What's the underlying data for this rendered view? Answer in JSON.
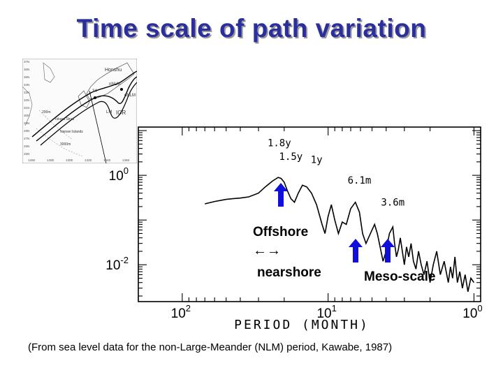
{
  "slide": {
    "title": "Time scale of path variation",
    "caption": "(From sea level data for the non-Large-Meander (NLM) period, Kawabe, 1987)"
  },
  "map": {
    "labels": [
      "Honshu",
      "nNLM",
      "oNLM",
      "LM",
      "IOR",
      "200m",
      "Tokara Strait",
      "Nansei Islands",
      "3000m",
      "34"
    ],
    "lat_labels": [
      "37N",
      "36N",
      "35N",
      "34N",
      "33N",
      "32N",
      "31N",
      "30N",
      "29N",
      "28N",
      "27N",
      "26N",
      "25N"
    ],
    "lon_labels": [
      "126E",
      "128E",
      "130E",
      "132E",
      "134E",
      "136E"
    ]
  },
  "annotations": {
    "offshore": "Offshore",
    "arrows": "←→",
    "nearshore": "nearshore",
    "mesoscale": "Meso-scale"
  },
  "colors": {
    "title": "#2b2f9e",
    "arrow": "#1010d8",
    "ink": "#000000"
  },
  "chart_data": {
    "type": "line",
    "xlabel": "PERIOD (MONTH)",
    "x_ticks": [
      {
        "base": "10",
        "exp": "2"
      },
      {
        "base": "10",
        "exp": "1"
      },
      {
        "base": "10",
        "exp": "0"
      }
    ],
    "y_ticks": [
      {
        "base": "10",
        "exp": "0"
      },
      {
        "base": "10",
        "exp": "-2"
      }
    ],
    "x_scale": "log-reversed",
    "y_scale": "log",
    "xlim": [
      200,
      0.9
    ],
    "ylim": [
      0.0015,
      12
    ],
    "peak_labels": [
      {
        "text": "1.8y",
        "x": 21.6,
        "y": 4.5
      },
      {
        "text": "1.5y",
        "x": 18,
        "y": 2.2
      },
      {
        "text": "1y",
        "x": 12,
        "y": 1.9
      },
      {
        "text": "6.1m",
        "x": 6.1,
        "y": 0.65
      },
      {
        "text": "3.6m",
        "x": 3.6,
        "y": 0.21
      }
    ],
    "series": [
      {
        "x": [
          70,
          60,
          50,
          45,
          40,
          35,
          30,
          27,
          24,
          22,
          21,
          20,
          19,
          18,
          17,
          16,
          15,
          14,
          13,
          12,
          11,
          10.5,
          10,
          9.5,
          9,
          8.5,
          8,
          7.5,
          7,
          6.5,
          6.1,
          5.8,
          5.5,
          5.2,
          5,
          4.8,
          4.6,
          4.4,
          4.2,
          4,
          3.8,
          3.6,
          3.5,
          3.4,
          3.3,
          3.2,
          3.1,
          3,
          2.9,
          2.8,
          2.7,
          2.6,
          2.5,
          2.4,
          2.3,
          2.2,
          2.1,
          2,
          1.9,
          1.8,
          1.7,
          1.6,
          1.5,
          1.45,
          1.4,
          1.35,
          1.3,
          1.25,
          1.2,
          1.15,
          1.1,
          1.05,
          1
        ],
        "y": [
          0.23,
          0.26,
          0.29,
          0.3,
          0.31,
          0.33,
          0.4,
          0.55,
          0.75,
          0.9,
          0.85,
          0.7,
          0.45,
          0.3,
          0.25,
          0.4,
          0.6,
          0.55,
          0.4,
          0.22,
          0.08,
          0.05,
          0.12,
          0.22,
          0.1,
          0.05,
          0.09,
          0.08,
          0.18,
          0.25,
          0.15,
          0.05,
          0.03,
          0.045,
          0.06,
          0.08,
          0.05,
          0.025,
          0.012,
          0.02,
          0.05,
          0.07,
          0.03,
          0.015,
          0.022,
          0.04,
          0.02,
          0.01,
          0.025,
          0.015,
          0.03,
          0.012,
          0.008,
          0.02,
          0.01,
          0.006,
          0.012,
          0.004,
          0.01,
          0.02,
          0.006,
          0.012,
          0.004,
          0.009,
          0.005,
          0.015,
          0.004,
          0.007,
          0.003,
          0.006,
          0.0025,
          0.005,
          0.004
        ]
      }
    ]
  }
}
